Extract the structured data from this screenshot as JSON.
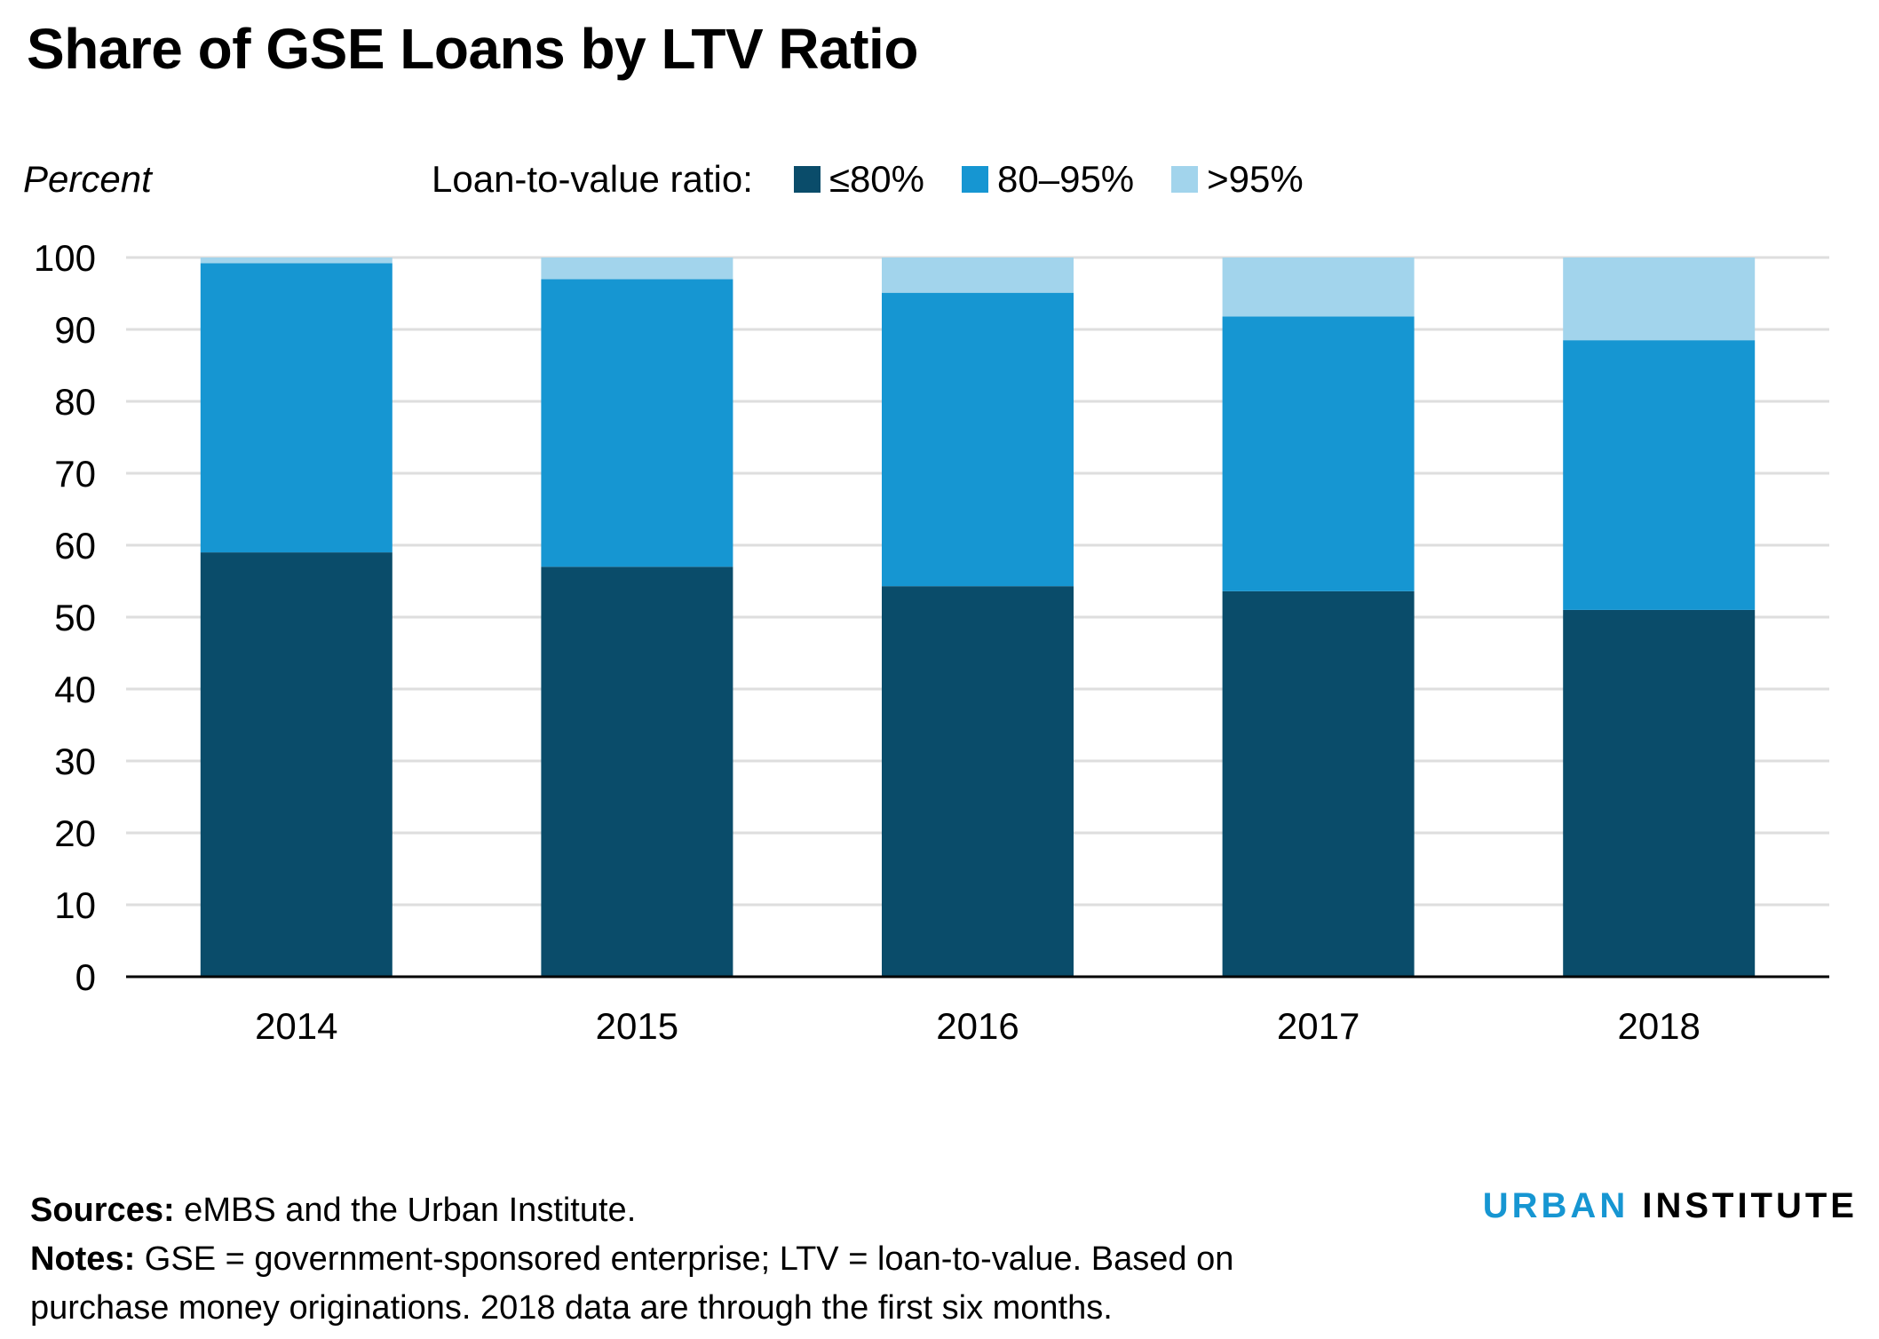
{
  "title": "Share of GSE Loans by LTV Ratio",
  "y_axis_label": "Percent",
  "legend": {
    "title": "Loan-to-value ratio:",
    "items": [
      {
        "label": "≤80%",
        "color": "#0a4c6a"
      },
      {
        "label": "80–95%",
        "color": "#1696d2"
      },
      {
        "label": ">95%",
        "color": "#a2d4ec"
      }
    ]
  },
  "chart_data": {
    "type": "bar",
    "stacked": true,
    "categories": [
      "2014",
      "2015",
      "2016",
      "2017",
      "2018"
    ],
    "series": [
      {
        "name": "≤80%",
        "color": "#0a4c6a",
        "values": [
          59,
          57,
          54.3,
          53.6,
          51
        ]
      },
      {
        "name": "80–95%",
        "color": "#1696d2",
        "values": [
          40.2,
          40,
          40.8,
          38.2,
          37.5
        ]
      },
      {
        "name": ">95%",
        "color": "#a2d4ec",
        "values": [
          0.8,
          3,
          4.9,
          8.2,
          11.5
        ]
      }
    ],
    "ylim": [
      0,
      100
    ],
    "yticks": [
      0,
      10,
      20,
      30,
      40,
      50,
      60,
      70,
      80,
      90,
      100
    ],
    "grid": true,
    "legend_position": "top"
  },
  "footer": {
    "sources_label": "Sources:",
    "sources_text": " eMBS and the Urban Institute.",
    "notes_label": "Notes:",
    "notes_line1": " GSE = government-sponsored enterprise; LTV = loan-to-value. Based on",
    "notes_line2": "purchase money originations. 2018 data are through the first six months."
  },
  "brand": {
    "part1": "URBAN",
    "part2": "INSTITUTE"
  }
}
